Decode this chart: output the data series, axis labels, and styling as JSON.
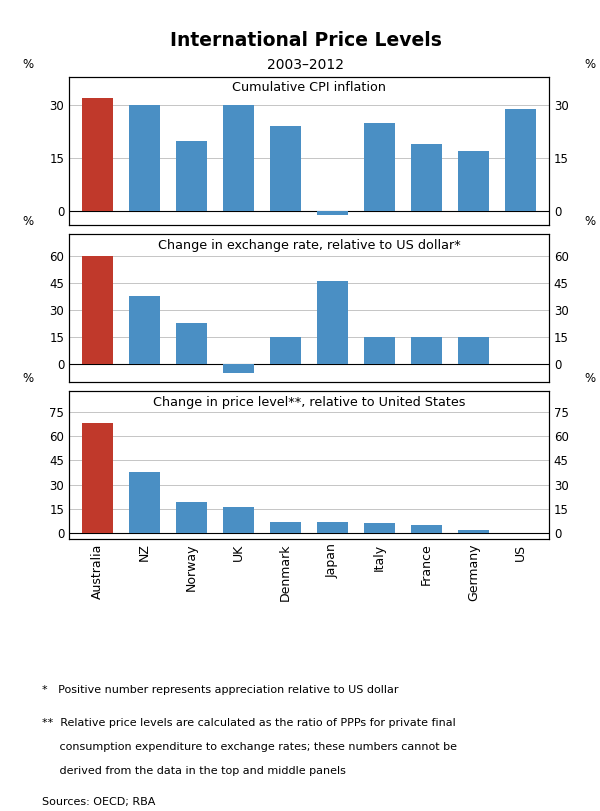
{
  "title": "International Price Levels",
  "subtitle": "2003–2012",
  "categories": [
    "Australia",
    "NZ",
    "Norway",
    "UK",
    "Denmark",
    "Japan",
    "Italy",
    "France",
    "Germany",
    "US"
  ],
  "panel1": {
    "title": "Cumulative CPI inflation",
    "values": [
      32,
      30,
      20,
      30,
      24,
      -1,
      25,
      19,
      17,
      29
    ],
    "ylim": [
      -4,
      38
    ],
    "yticks": [
      0,
      15,
      30
    ],
    "ylabel": "%"
  },
  "panel2": {
    "title": "Change in exchange rate, relative to US dollar*",
    "values": [
      60,
      38,
      23,
      -5,
      15,
      46,
      15,
      15,
      15,
      0
    ],
    "ylim": [
      -10,
      72
    ],
    "yticks": [
      0,
      15,
      30,
      45,
      60
    ],
    "ylabel": "%"
  },
  "panel3": {
    "title": "Change in price level**, relative to United States",
    "values": [
      68,
      38,
      19,
      16,
      7,
      7,
      6,
      5,
      2,
      0
    ],
    "ylim": [
      -4,
      88
    ],
    "yticks": [
      0,
      15,
      30,
      45,
      60,
      75
    ],
    "ylabel": "%"
  },
  "bar_color_australia": "#c0392b",
  "bar_color_others": "#4a8fc4",
  "footnote1": "*   Positive number represents appreciation relative to US dollar",
  "footnote2_line1": "**  Relative price levels are calculated as the ratio of PPPs for private final",
  "footnote2_line2": "     consumption expenditure to exchange rates; these numbers cannot be",
  "footnote2_line3": "     derived from the data in the top and middle panels",
  "footnote3": "Sources: OECD; RBA"
}
